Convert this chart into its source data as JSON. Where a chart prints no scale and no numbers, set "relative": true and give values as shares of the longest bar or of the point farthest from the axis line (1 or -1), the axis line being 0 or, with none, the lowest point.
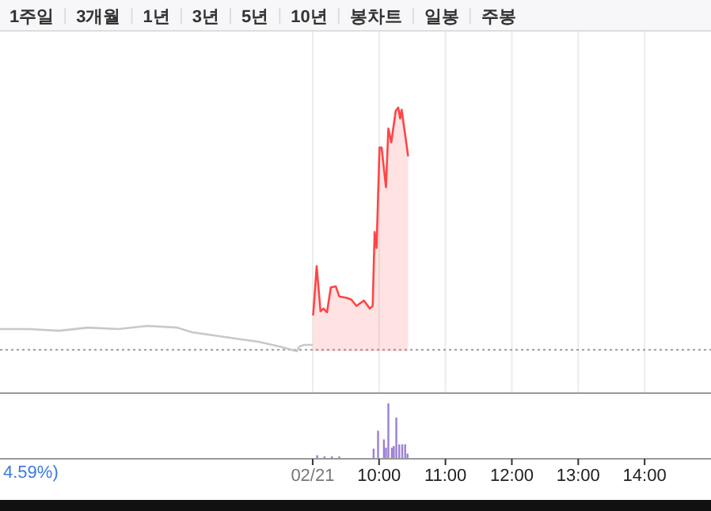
{
  "chart_data": [
    {
      "type": "line",
      "relative": true,
      "xlim": [
        4.29,
        15.0
      ],
      "xticks": [
        {
          "value": 9,
          "label": null
        },
        {
          "value": 10,
          "label": null
        },
        {
          "value": 11,
          "label": null
        },
        {
          "value": 12,
          "label": null
        },
        {
          "value": 13,
          "label": null
        },
        {
          "value": 14,
          "label": null
        }
      ],
      "tick_labels": false,
      "grid": "x",
      "series": [
        {
          "color": "#c8c8c8",
          "x": [
            4.29,
            4.73,
            5.18,
            5.62,
            6.07,
            6.51,
            6.96,
            7.18,
            7.51,
            7.84,
            8.18,
            8.51,
            8.76,
            8.8,
            8.87,
            9.0
          ],
          "values": [
            0.091,
            0.091,
            0.084,
            0.097,
            0.091,
            0.104,
            0.097,
            0.078,
            0.065,
            0.052,
            0.039,
            0.019,
            0,
            0.019,
            0.026,
            0.026
          ]
        },
        {
          "type": "area",
          "color": "#ff4545",
          "x": [
            9.007,
            9.06,
            9.118,
            9.162,
            9.216,
            9.273,
            9.349,
            9.4,
            9.511,
            9.582,
            9.66,
            9.771,
            9.86,
            9.904,
            9.933,
            9.962,
            10.007,
            10.038,
            10.104,
            10.14,
            10.184,
            10.251,
            10.289,
            10.318,
            10.34,
            10.438
          ],
          "values": [
            0.147,
            0.349,
            0.164,
            0.175,
            0.16,
            0.262,
            0.266,
            0.225,
            0.219,
            0.212,
            0.186,
            0.208,
            0.175,
            0.186,
            0.489,
            0.424,
            0.836,
            0.836,
            0.673,
            0.914,
            0.857,
            0.987,
            1,
            0.955,
            0.991,
            0.8
          ]
        }
      ],
      "ref_lines": [
        {
          "axis": "y",
          "value": 0.006,
          "color": "#999999",
          "line_style": "dotted"
        }
      ],
      "annotations": [
        "1주일",
        "3개월",
        "1년",
        "3년",
        "5년",
        "10년",
        "봉차트",
        "일봉",
        "주봉",
        "4.59%)"
      ]
    },
    {
      "type": "bar",
      "relative": true,
      "xlim": [
        4.29,
        15.0
      ],
      "xticks": [
        {
          "value": 9,
          "label": "02/21"
        },
        {
          "value": 10,
          "label": "10:00"
        },
        {
          "value": 11,
          "label": "11:00"
        },
        {
          "value": 12,
          "label": "12:00"
        },
        {
          "value": 13,
          "label": "13:00"
        },
        {
          "value": 14,
          "label": "14:00"
        }
      ],
      "tick_labels": "x",
      "color": "#9b7fd4",
      "x": [
        9.067,
        9.178,
        9.289,
        9.4,
        9.918,
        9.985,
        10.073,
        10.104,
        10.14,
        10.193,
        10.222,
        10.26,
        10.304,
        10.349,
        10.393,
        10.429
      ],
      "values": [
        0.05,
        0.03,
        0.03,
        0.03,
        0.17,
        0.5,
        0.34,
        0.19,
        1,
        0.19,
        0.22,
        0.74,
        0.25,
        0.25,
        0.25,
        0.08
      ]
    }
  ]
}
